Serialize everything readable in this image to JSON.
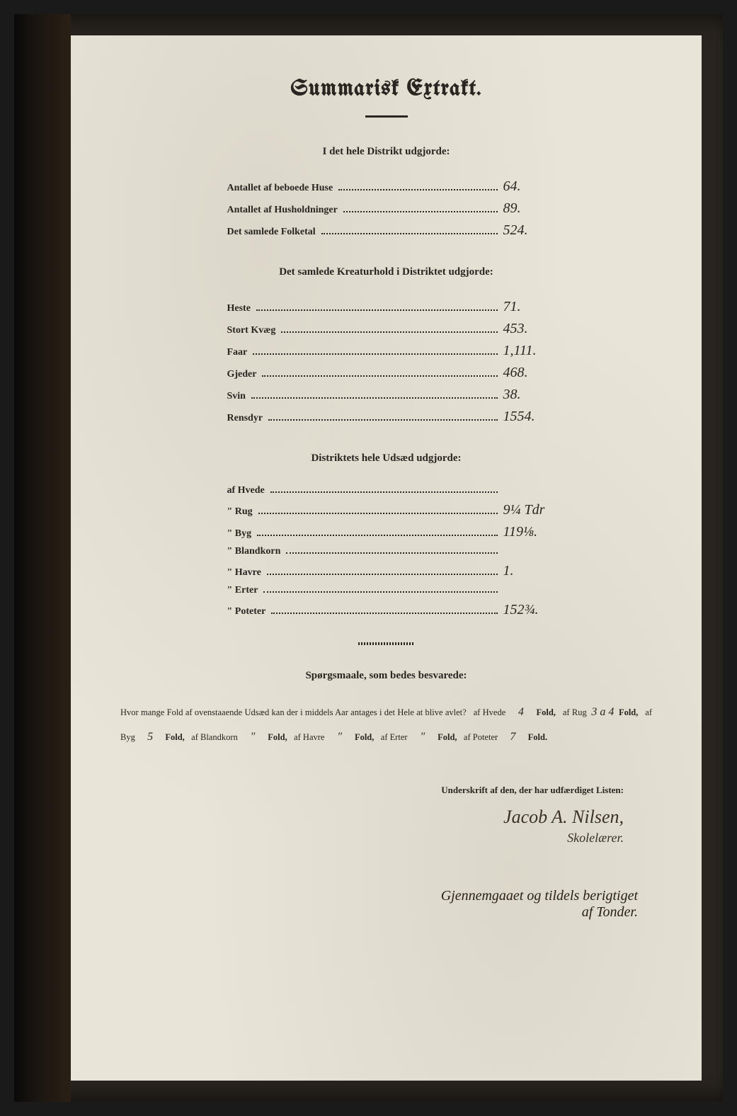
{
  "title": "Summarisk Extrakt.",
  "section1": {
    "heading": "I det hele Distrikt udgjorde:",
    "rows": [
      {
        "label": "Antallet af beboede Huse",
        "value": "64."
      },
      {
        "label": "Antallet af Husholdninger",
        "value": "89."
      },
      {
        "label": "Det samlede Folketal",
        "value": "524."
      }
    ]
  },
  "section2": {
    "heading": "Det samlede Kreaturhold i Distriktet udgjorde:",
    "rows": [
      {
        "label": "Heste",
        "value": "71."
      },
      {
        "label": "Stort Kvæg",
        "value": "453."
      },
      {
        "label": "Faar",
        "value": "1,111."
      },
      {
        "label": "Gjeder",
        "value": "468."
      },
      {
        "label": "Svin",
        "value": "38."
      },
      {
        "label": "Rensdyr",
        "value": "1554."
      }
    ]
  },
  "section3": {
    "heading": "Distriktets hele Udsæd udgjorde:",
    "rows": [
      {
        "label": "af Hvede",
        "value": ""
      },
      {
        "label": "\" Rug",
        "value": "9¼ Tdr"
      },
      {
        "label": "\" Byg",
        "value": "119⅛."
      },
      {
        "label": "\" Blandkorn",
        "value": ""
      },
      {
        "label": "\" Havre",
        "value": "1."
      },
      {
        "label": "\" Erter",
        "value": ""
      },
      {
        "label": "\" Poteter",
        "value": "152¾."
      }
    ]
  },
  "questions": {
    "heading": "Spørgsmaale, som bedes besvarede:",
    "intro": "Hvor mange Fold af ovenstaaende Udsæd kan der i middels Aar antages i det Hele at blive avlet?",
    "answers": {
      "hvede": "4",
      "rug": "3 a 4",
      "byg": "5",
      "blandkorn": "\"",
      "havre": "\"",
      "erter": "\"",
      "poteter": "7"
    }
  },
  "signature": {
    "label": "Underskrift af den, der har udfærdiget Listen:",
    "name": "Jacob A. Nilsen,",
    "title": "Skolelærer."
  },
  "secondary": {
    "line1": "Gjennemgaaet og tildels berigtiget",
    "line2": "af Tonder."
  }
}
